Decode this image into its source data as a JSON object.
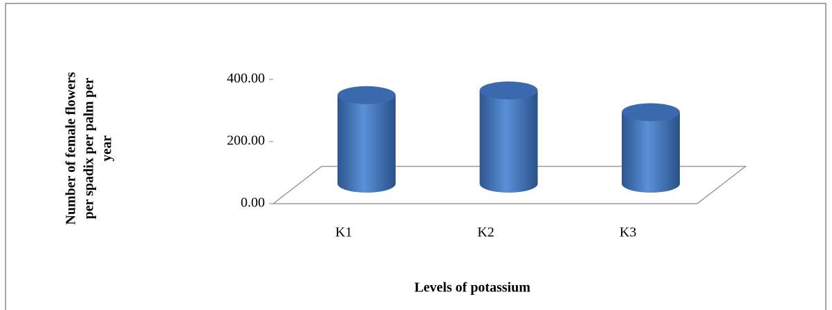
{
  "chart_data": {
    "type": "bar3d",
    "y_label": [
      "Number of female flowers",
      "per spadix per palm per",
      "year"
    ],
    "x_label": "Levels  of potassium",
    "categories": [
      "K1",
      "K2",
      "K3"
    ],
    "values": [
      285,
      300,
      230
    ],
    "color": "#4a7ec4",
    "ylim": [
      0,
      400
    ],
    "yticks": [
      {
        "value": 0,
        "label": "0.00"
      },
      {
        "value": 200,
        "label": "200.00"
      },
      {
        "value": 400,
        "label": "400.00"
      }
    ]
  }
}
